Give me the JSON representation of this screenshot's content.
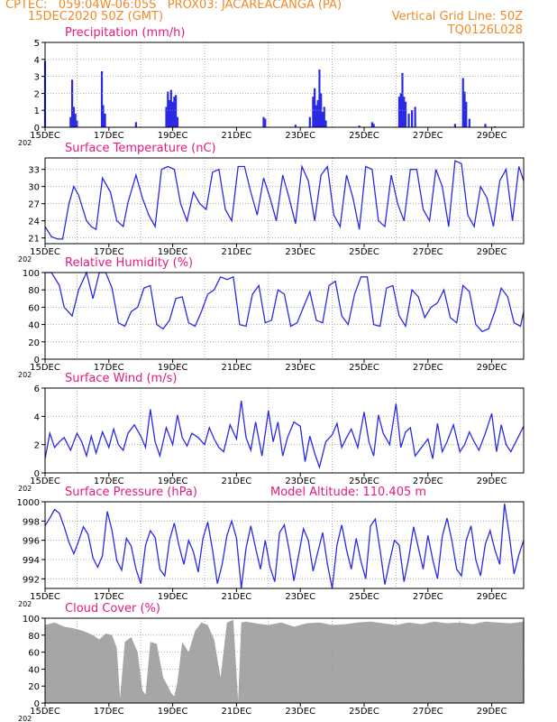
{
  "header": {
    "line1": "CPTEC:   059:04W-06:05S   PROX03: JACAREACANGA (PA)",
    "line2": "15DEC2020 50Z (GMT)",
    "grid_note": "Vertical Grid Line: 50Z",
    "code": "TQ0126L028"
  },
  "colors": {
    "header": "#f08a28",
    "title": "#e6197e",
    "series": "#2a2ae6",
    "cloud": "#a6a6a6",
    "grid": "#9a9a9a"
  },
  "x_axis": {
    "tick_labels": [
      "15DEC",
      "17DEC",
      "19DEC",
      "21DEC",
      "23DEC",
      "25DEC",
      "27DEC",
      "29DEC"
    ],
    "ticks_day": [
      0,
      2,
      4,
      6,
      8,
      10,
      12,
      14
    ],
    "grid_days": [
      1,
      3,
      5,
      7,
      9,
      11,
      13
    ],
    "range_days": [
      0,
      15
    ],
    "year_stub": "202"
  },
  "chart_data": [
    {
      "id": "precip",
      "type": "bar",
      "title": "Precipitation (mm/h)",
      "ylim": [
        0,
        5
      ],
      "yticks": [
        "0",
        "1",
        "2",
        "3",
        "4",
        "5"
      ],
      "ytick_values": [
        0,
        1,
        2,
        3,
        4,
        5
      ],
      "x": [
        0.0,
        0.8,
        0.85,
        0.9,
        0.95,
        1.0,
        1.78,
        1.82,
        1.88,
        2.85,
        3.8,
        3.85,
        3.9,
        3.95,
        4.0,
        4.05,
        4.1,
        4.15,
        6.85,
        6.9,
        7.85,
        8.3,
        8.4,
        8.45,
        8.5,
        8.55,
        8.6,
        8.65,
        8.7,
        8.75,
        8.8,
        9.85,
        10.25,
        10.3,
        11.1,
        11.15,
        11.2,
        11.25,
        11.3,
        11.4,
        11.5,
        11.6,
        12.85,
        13.1,
        13.15,
        13.2,
        13.3,
        13.8,
        14.1
      ],
      "values": [
        3.9,
        0.6,
        2.8,
        1.2,
        0.8,
        0.4,
        3.3,
        1.3,
        0.8,
        0.3,
        1.2,
        2.1,
        1.6,
        2.2,
        1.5,
        1.8,
        1.9,
        0.6,
        0.6,
        0.5,
        0.15,
        0.6,
        1.8,
        2.3,
        1.3,
        1.6,
        3.4,
        2.0,
        0.9,
        1.2,
        0.4,
        0.1,
        0.3,
        0.2,
        1.8,
        2.0,
        3.2,
        1.8,
        1.5,
        0.8,
        1.0,
        1.2,
        0.2,
        2.9,
        2.1,
        1.5,
        0.5,
        0.2,
        0.05
      ]
    },
    {
      "id": "temp",
      "type": "line",
      "title": "Surface Temperature (nC)",
      "ylim": [
        20,
        35
      ],
      "yticks": [
        "21",
        "24",
        "27",
        "30",
        "33"
      ],
      "ytick_values": [
        21,
        24,
        27,
        30,
        33
      ],
      "x": [
        0,
        0.2,
        0.4,
        0.55,
        0.75,
        0.9,
        1.05,
        1.3,
        1.45,
        1.6,
        1.8,
        2.05,
        2.25,
        2.45,
        2.6,
        2.85,
        3.05,
        3.25,
        3.45,
        3.65,
        3.85,
        4.05,
        4.25,
        4.45,
        4.65,
        4.85,
        5.05,
        5.25,
        5.45,
        5.65,
        5.85,
        6.05,
        6.25,
        6.45,
        6.65,
        6.85,
        7.05,
        7.25,
        7.45,
        7.65,
        7.85,
        8.05,
        8.25,
        8.45,
        8.65,
        8.85,
        9.05,
        9.25,
        9.45,
        9.65,
        9.85,
        10.05,
        10.25,
        10.45,
        10.65,
        10.85,
        11.05,
        11.25,
        11.45,
        11.65,
        11.85,
        12.05,
        12.25,
        12.45,
        12.65,
        12.85,
        13.05,
        13.25,
        13.45,
        13.65,
        13.85,
        14.05,
        14.25,
        14.45,
        14.65,
        14.85,
        15
      ],
      "values": [
        23,
        21.2,
        20.8,
        20.8,
        27,
        30,
        28.5,
        24,
        23,
        22.5,
        31.5,
        29,
        24,
        23,
        27.2,
        32,
        28,
        25,
        23,
        33,
        33.5,
        33,
        27,
        24,
        29,
        27,
        26,
        32.5,
        33,
        26,
        24,
        33.5,
        33.5,
        29,
        25,
        31.5,
        28,
        24,
        32,
        28,
        23.5,
        33.5,
        31,
        24,
        32,
        33.5,
        25,
        23,
        32,
        28,
        22.5,
        33.5,
        33,
        24,
        23,
        32,
        27,
        24,
        33,
        33,
        26,
        24,
        33,
        30,
        23,
        34.5,
        34,
        25,
        23,
        30,
        28,
        23,
        31,
        33,
        24,
        33.5,
        31
      ]
    },
    {
      "id": "rh",
      "type": "line",
      "title": "Relative Humidity (%)",
      "ylim": [
        0,
        100
      ],
      "yticks": [
        "0",
        "20",
        "40",
        "60",
        "80",
        "100"
      ],
      "ytick_values": [
        0,
        20,
        40,
        60,
        80,
        100
      ],
      "x": [
        0,
        0.2,
        0.45,
        0.6,
        0.85,
        1.05,
        1.3,
        1.5,
        1.7,
        1.9,
        2.1,
        2.3,
        2.5,
        2.7,
        2.9,
        3.1,
        3.3,
        3.5,
        3.7,
        3.9,
        4.1,
        4.3,
        4.5,
        4.7,
        4.9,
        5.1,
        5.3,
        5.5,
        5.7,
        5.9,
        6.1,
        6.3,
        6.5,
        6.7,
        6.9,
        7.1,
        7.3,
        7.5,
        7.7,
        7.9,
        8.1,
        8.3,
        8.5,
        8.7,
        8.9,
        9.1,
        9.3,
        9.5,
        9.7,
        9.9,
        10.1,
        10.3,
        10.5,
        10.7,
        10.9,
        11.1,
        11.3,
        11.5,
        11.7,
        11.9,
        12.1,
        12.3,
        12.5,
        12.7,
        12.9,
        13.1,
        13.3,
        13.5,
        13.7,
        13.9,
        14.1,
        14.3,
        14.5,
        14.7,
        14.9,
        15
      ],
      "values": [
        100,
        100,
        85,
        60,
        50,
        80,
        100,
        70,
        100,
        100,
        82,
        42,
        38,
        55,
        60,
        82,
        85,
        40,
        35,
        45,
        70,
        72,
        42,
        38,
        55,
        75,
        80,
        95,
        92,
        95,
        40,
        38,
        75,
        85,
        42,
        45,
        80,
        75,
        38,
        42,
        60,
        78,
        45,
        42,
        85,
        90,
        50,
        40,
        75,
        95,
        95,
        40,
        38,
        82,
        85,
        50,
        38,
        80,
        72,
        48,
        60,
        65,
        80,
        48,
        42,
        85,
        78,
        40,
        32,
        35,
        55,
        82,
        72,
        42,
        38,
        55
      ]
    },
    {
      "id": "wind",
      "type": "line",
      "title": "Surface Wind (m/s)",
      "ylim": [
        0,
        6
      ],
      "yticks": [
        "0",
        "2",
        "4",
        "6"
      ],
      "ytick_values": [
        0,
        2,
        4,
        6
      ],
      "x": [
        0,
        0.15,
        0.3,
        0.45,
        0.6,
        0.8,
        1.0,
        1.15,
        1.3,
        1.45,
        1.6,
        1.8,
        2.0,
        2.15,
        2.3,
        2.45,
        2.6,
        2.8,
        3.0,
        3.15,
        3.3,
        3.45,
        3.6,
        3.8,
        4.0,
        4.15,
        4.3,
        4.45,
        4.6,
        4.8,
        5.0,
        5.15,
        5.3,
        5.45,
        5.6,
        5.8,
        6.0,
        6.15,
        6.3,
        6.45,
        6.6,
        6.8,
        7.0,
        7.15,
        7.3,
        7.45,
        7.6,
        7.8,
        8.0,
        8.15,
        8.3,
        8.45,
        8.6,
        8.8,
        9.0,
        9.15,
        9.3,
        9.45,
        9.6,
        9.8,
        10.0,
        10.15,
        10.3,
        10.45,
        10.6,
        10.8,
        11.0,
        11.15,
        11.3,
        11.45,
        11.6,
        11.8,
        12.0,
        12.15,
        12.3,
        12.45,
        12.6,
        12.8,
        13.0,
        13.15,
        13.3,
        13.45,
        13.6,
        13.8,
        14.0,
        14.15,
        14.3,
        14.45,
        14.6,
        14.8,
        15
      ],
      "values": [
        1.0,
        2.8,
        1.8,
        2.2,
        2.5,
        1.6,
        2.8,
        2.2,
        1.2,
        2.6,
        1.4,
        2.9,
        1.8,
        3.1,
        2.0,
        1.6,
        2.8,
        3.4,
        2.6,
        1.8,
        4.5,
        2.2,
        1.2,
        3.2,
        2.0,
        4.1,
        2.5,
        1.9,
        2.8,
        2.5,
        2.0,
        3.2,
        2.4,
        1.8,
        1.5,
        3.4,
        2.4,
        5.1,
        2.5,
        1.6,
        3.6,
        1.2,
        4.4,
        2.2,
        3.6,
        1.2,
        2.5,
        3.6,
        3.3,
        0.8,
        2.6,
        1.4,
        0.4,
        2.2,
        2.7,
        3.5,
        1.8,
        2.5,
        3.1,
        1.8,
        4.3,
        2.2,
        1.2,
        4.1,
        2.8,
        2.0,
        4.9,
        1.8,
        2.9,
        3.2,
        1.2,
        1.8,
        2.4,
        1.0,
        3.5,
        1.5,
        2.2,
        3.4,
        1.5,
        2.0,
        2.9,
        2.2,
        1.6,
        2.8,
        4.2,
        1.5,
        3.4,
        2.0,
        1.5,
        2.4,
        3.3
      ]
    },
    {
      "id": "pressure",
      "type": "line",
      "title": "Surface Pressure (hPa)",
      "annotation": "Model Altitude: 110.405  m",
      "ylim": [
        991,
        1000
      ],
      "yticks": [
        "992",
        "994",
        "996",
        "998",
        "1000"
      ],
      "ytick_values": [
        992,
        994,
        996,
        998,
        1000
      ],
      "x": [
        0,
        0.15,
        0.3,
        0.45,
        0.6,
        0.75,
        0.9,
        1.05,
        1.2,
        1.35,
        1.5,
        1.65,
        1.8,
        1.95,
        2.1,
        2.25,
        2.4,
        2.55,
        2.7,
        2.85,
        3.0,
        3.15,
        3.3,
        3.45,
        3.6,
        3.75,
        3.9,
        4.05,
        4.2,
        4.35,
        4.5,
        4.65,
        4.8,
        4.95,
        5.1,
        5.25,
        5.4,
        5.55,
        5.7,
        5.85,
        6.0,
        6.15,
        6.3,
        6.45,
        6.6,
        6.75,
        6.9,
        7.05,
        7.2,
        7.35,
        7.5,
        7.65,
        7.8,
        7.95,
        8.1,
        8.25,
        8.4,
        8.55,
        8.7,
        8.85,
        9.0,
        9.15,
        9.3,
        9.45,
        9.6,
        9.75,
        9.9,
        10.05,
        10.2,
        10.35,
        10.5,
        10.65,
        10.8,
        10.95,
        11.1,
        11.25,
        11.4,
        11.55,
        11.7,
        11.85,
        12.0,
        12.15,
        12.3,
        12.45,
        12.6,
        12.75,
        12.9,
        13.05,
        13.2,
        13.35,
        13.5,
        13.65,
        13.8,
        13.95,
        14.1,
        14.25,
        14.4,
        14.55,
        14.7,
        14.85,
        15
      ],
      "values": [
        997.5,
        998.3,
        999.2,
        998.8,
        997.4,
        995.8,
        994.6,
        995.9,
        997.4,
        996.6,
        994.2,
        993.2,
        994.4,
        999.0,
        997.0,
        993.9,
        992.9,
        996.2,
        995.4,
        993.0,
        991.5,
        995.5,
        997.0,
        996.3,
        993.0,
        992.3,
        996.0,
        997.8,
        995.4,
        993.5,
        996.0,
        994.8,
        992.7,
        996.2,
        997.9,
        995.0,
        991.5,
        993.5,
        996.5,
        998.0,
        996.2,
        991.0,
        995.2,
        997.5,
        995.2,
        993.0,
        996.0,
        993.2,
        991.7,
        996.8,
        997.6,
        995.0,
        991.8,
        994.5,
        997.2,
        996.0,
        992.8,
        994.8,
        996.8,
        993.5,
        991.0,
        995.5,
        997.6,
        995.0,
        993.0,
        996.2,
        993.8,
        992.0,
        997.5,
        998.2,
        995.0,
        991.4,
        993.8,
        996.0,
        995.5,
        991.7,
        994.2,
        997.4,
        995.2,
        993.0,
        996.5,
        994.0,
        992.0,
        996.4,
        998.3,
        996.0,
        993.0,
        992.3,
        996.0,
        997.5,
        994.0,
        992.3,
        995.6,
        997.0,
        995.0,
        993.5,
        999.8,
        996.5,
        992.5,
        994.5,
        996.0
      ]
    },
    {
      "id": "cloud",
      "type": "area",
      "title": "Cloud Cover (%)",
      "ylim": [
        0,
        100
      ],
      "yticks": [
        "0",
        "20",
        "40",
        "60",
        "80",
        "100"
      ],
      "ytick_values": [
        0,
        20,
        40,
        60,
        80,
        100
      ],
      "x": [
        0,
        0.3,
        0.6,
        0.9,
        1.2,
        1.5,
        1.7,
        1.9,
        2.1,
        2.25,
        2.35,
        2.5,
        2.7,
        2.9,
        3.05,
        3.15,
        3.3,
        3.5,
        3.7,
        3.85,
        3.95,
        4.05,
        4.15,
        4.3,
        4.5,
        4.7,
        4.9,
        5.1,
        5.3,
        5.5,
        5.7,
        5.9,
        6.05,
        6.15,
        6.3,
        6.6,
        7.0,
        7.4,
        7.8,
        8.2,
        8.6,
        9.0,
        9.4,
        9.8,
        10.2,
        10.6,
        11.0,
        11.4,
        11.8,
        12.2,
        12.6,
        13.0,
        13.4,
        13.8,
        14.2,
        14.6,
        15
      ],
      "values": [
        92,
        95,
        90,
        88,
        85,
        80,
        75,
        82,
        80,
        65,
        6,
        72,
        78,
        60,
        15,
        10,
        72,
        70,
        30,
        20,
        12,
        8,
        25,
        72,
        60,
        85,
        95,
        92,
        75,
        30,
        95,
        98,
        2,
        95,
        96,
        94,
        92,
        95,
        90,
        94,
        95,
        92,
        93,
        95,
        96,
        94,
        92,
        95,
        93,
        96,
        94,
        95,
        93,
        96,
        95,
        94,
        96
      ]
    }
  ]
}
